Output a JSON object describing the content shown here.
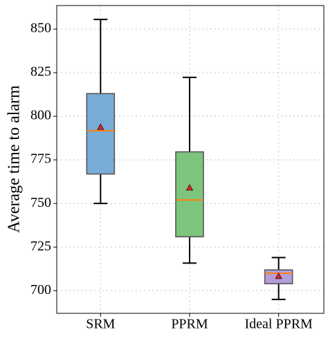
{
  "chart_data": {
    "type": "box",
    "y_label": "Average time to alarm",
    "categories": [
      "SRM",
      "PPRM",
      "Ideal PPRM"
    ],
    "colors": [
      "#78acd6",
      "#7dc47d",
      "#b59ed8"
    ],
    "low": [
      750,
      715.8,
      695
    ],
    "q1": [
      766.9,
      730.9,
      704
    ],
    "median": [
      791.7,
      752,
      710
    ],
    "q3": [
      813,
      779.6,
      711.9
    ],
    "high": [
      855.5,
      822.3,
      719
    ],
    "mean": [
      793.8,
      759,
      708.3
    ],
    "ylim": [
      687,
      863.5
    ],
    "yticks": [
      700,
      725,
      750,
      775,
      800,
      825,
      850
    ],
    "grid": true
  }
}
